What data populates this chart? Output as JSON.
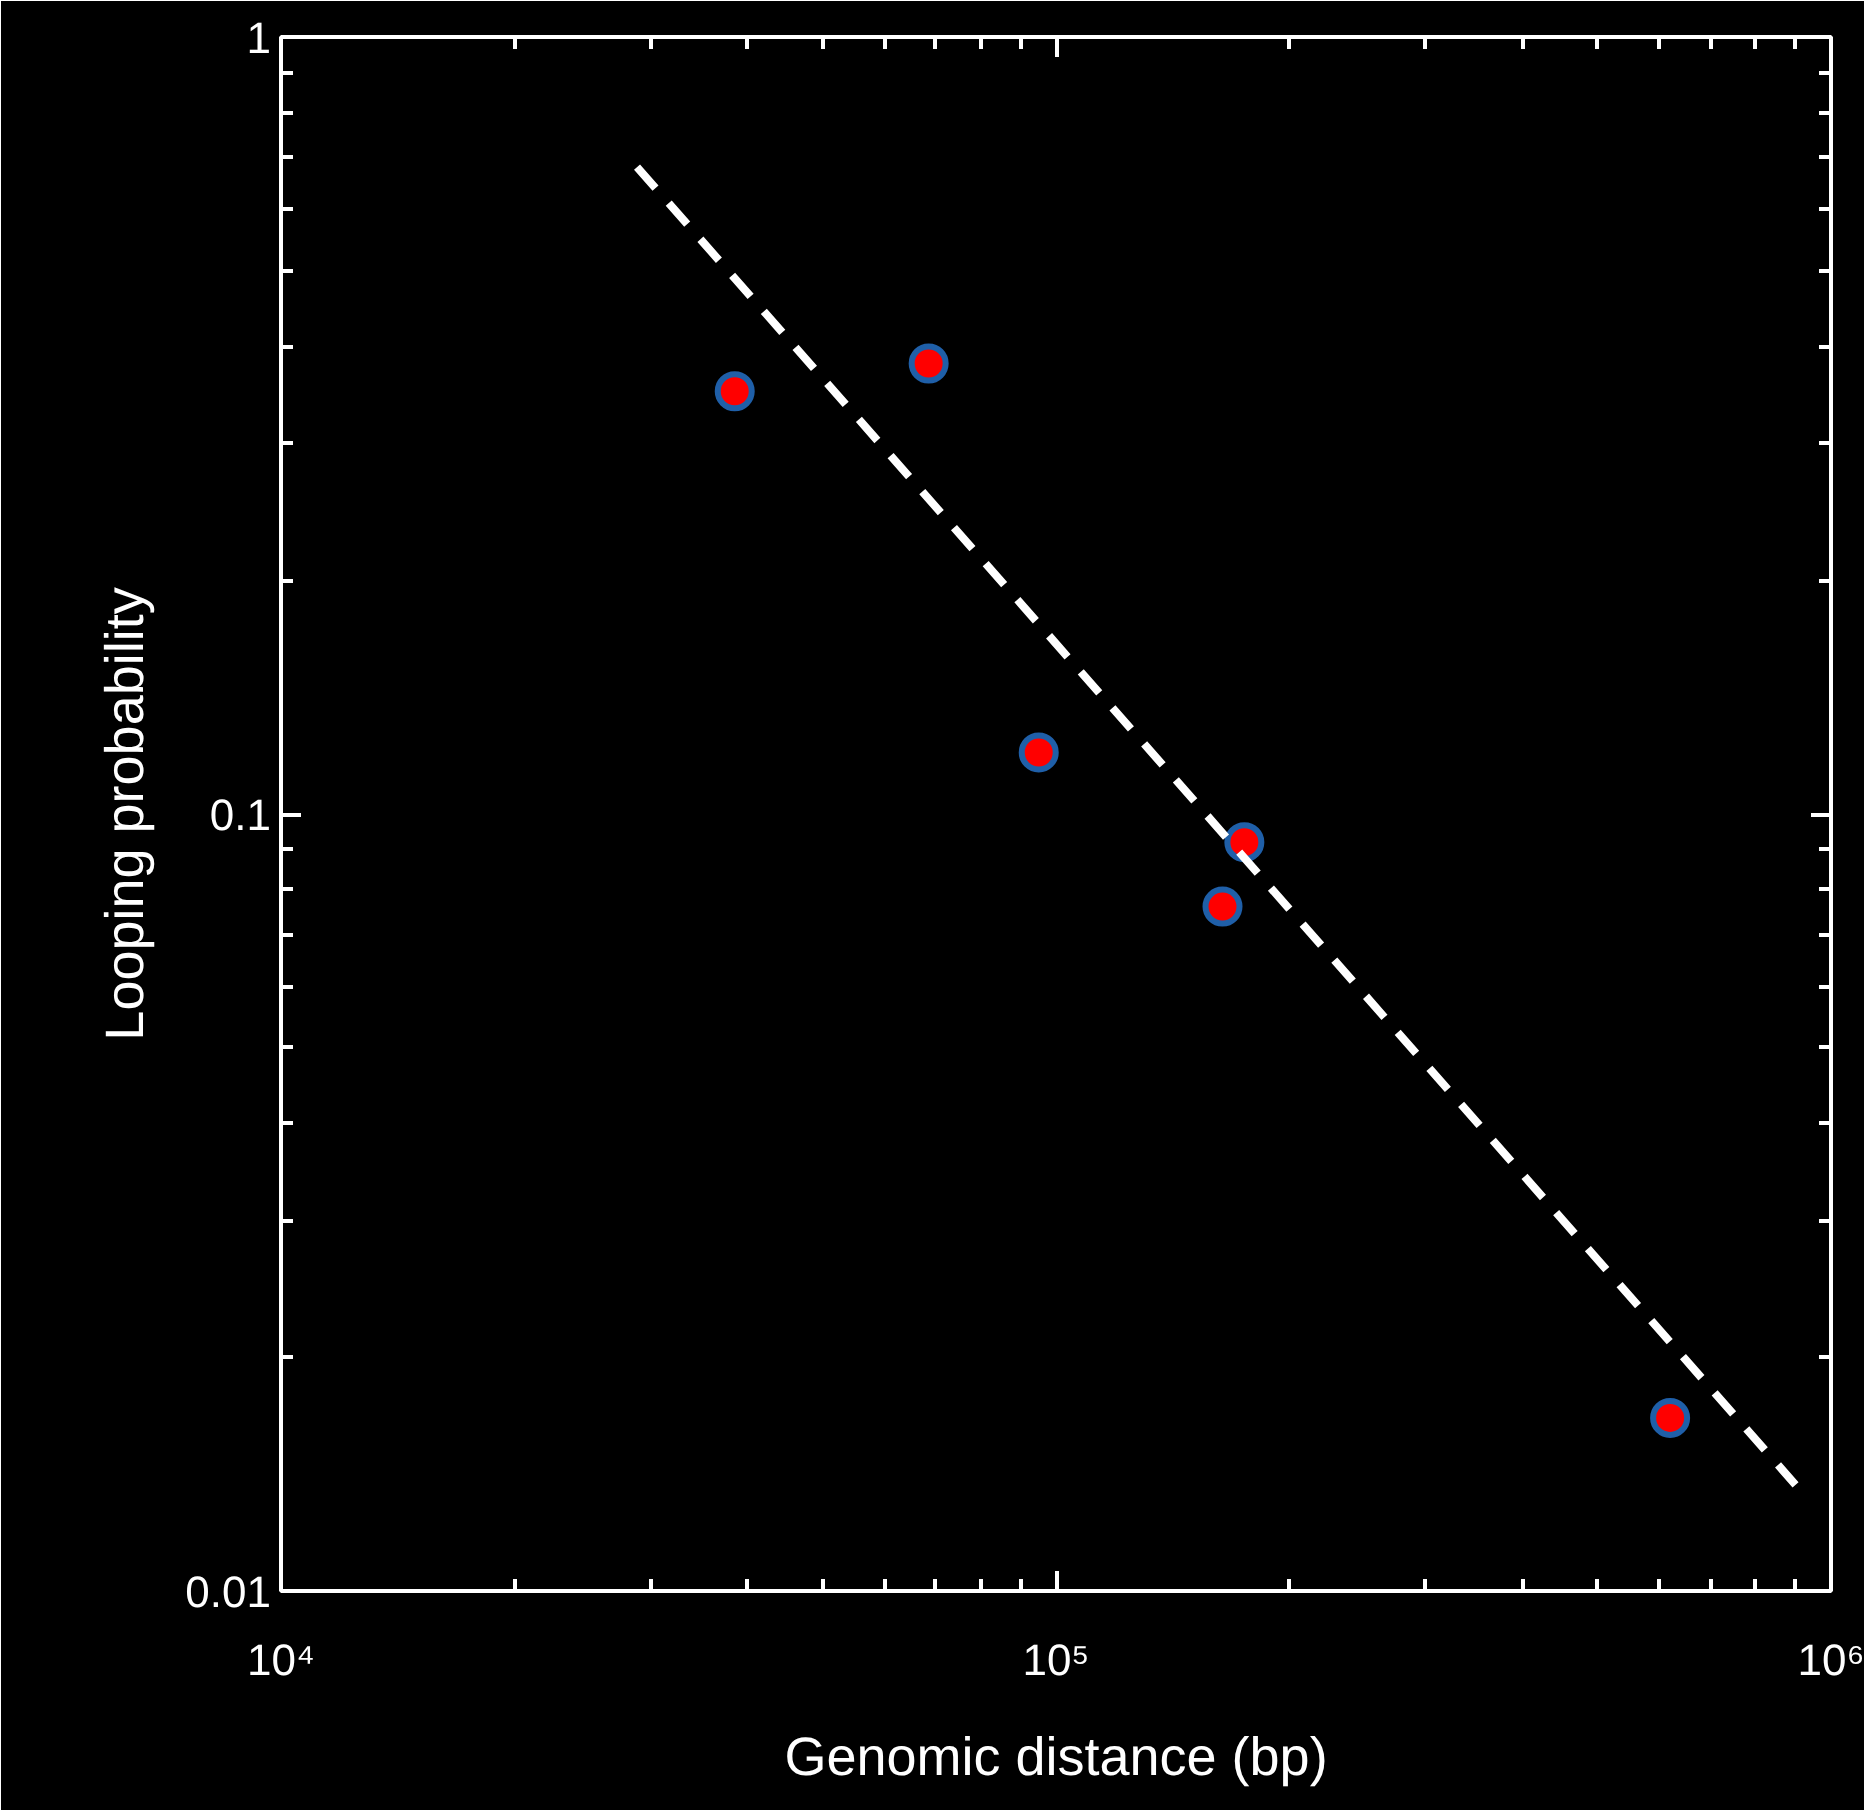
{
  "chart_data": {
    "type": "scatter",
    "xlabel": "Genomic distance (bp)",
    "ylabel": "Looping probability",
    "log": "xy",
    "grid": false,
    "marker": "circle",
    "xlim": [
      10000,
      1000000
    ],
    "ylim": [
      0.01,
      1
    ],
    "xticks": [
      {
        "value": 10000,
        "label": "10⁴"
      },
      {
        "value": 20000,
        "label": null
      },
      {
        "value": 30000,
        "label": null
      },
      {
        "value": 40000,
        "label": null
      },
      {
        "value": 50000,
        "label": null
      },
      {
        "value": 60000,
        "label": null
      },
      {
        "value": 70000,
        "label": null
      },
      {
        "value": 80000,
        "label": null
      },
      {
        "value": 90000,
        "label": null
      },
      {
        "value": 100000,
        "label": "10⁵"
      },
      {
        "value": 200000,
        "label": null
      },
      {
        "value": 300000,
        "label": null
      },
      {
        "value": 400000,
        "label": null
      },
      {
        "value": 500000,
        "label": null
      },
      {
        "value": 600000,
        "label": null
      },
      {
        "value": 700000,
        "label": null
      },
      {
        "value": 800000,
        "label": null
      },
      {
        "value": 900000,
        "label": null
      },
      {
        "value": 1000000,
        "label": "10⁶"
      }
    ],
    "yticks": [
      0.01,
      {
        "value": 0.02,
        "label": null
      },
      {
        "value": 0.03,
        "label": null
      },
      {
        "value": 0.04,
        "label": null
      },
      {
        "value": 0.05,
        "label": null
      },
      {
        "value": 0.06,
        "label": null
      },
      {
        "value": 0.07,
        "label": null
      },
      {
        "value": 0.08,
        "label": null
      },
      {
        "value": 0.09,
        "label": null
      },
      0.1,
      {
        "value": 0.2,
        "label": null
      },
      {
        "value": 0.3,
        "label": null
      },
      {
        "value": 0.4,
        "label": null
      },
      {
        "value": 0.5,
        "label": null
      },
      {
        "value": 0.6,
        "label": null
      },
      {
        "value": 0.7,
        "label": null
      },
      {
        "value": 0.8,
        "label": null
      },
      {
        "value": 0.9,
        "label": null
      },
      1
    ],
    "series": [
      {
        "color": "#ff0000",
        "x": [
          38500,
          68500,
          95000,
          175000,
          164000,
          620000
        ],
        "values": [
          0.35,
          0.38,
          0.12,
          0.092,
          0.076,
          0.0167
        ]
      },
      {
        "type": "line",
        "line_style": "dashed",
        "marker": "none",
        "color": "#ffffff",
        "x": [
          28800,
          900000
        ],
        "values": [
          0.68,
          0.0137
        ]
      }
    ]
  }
}
